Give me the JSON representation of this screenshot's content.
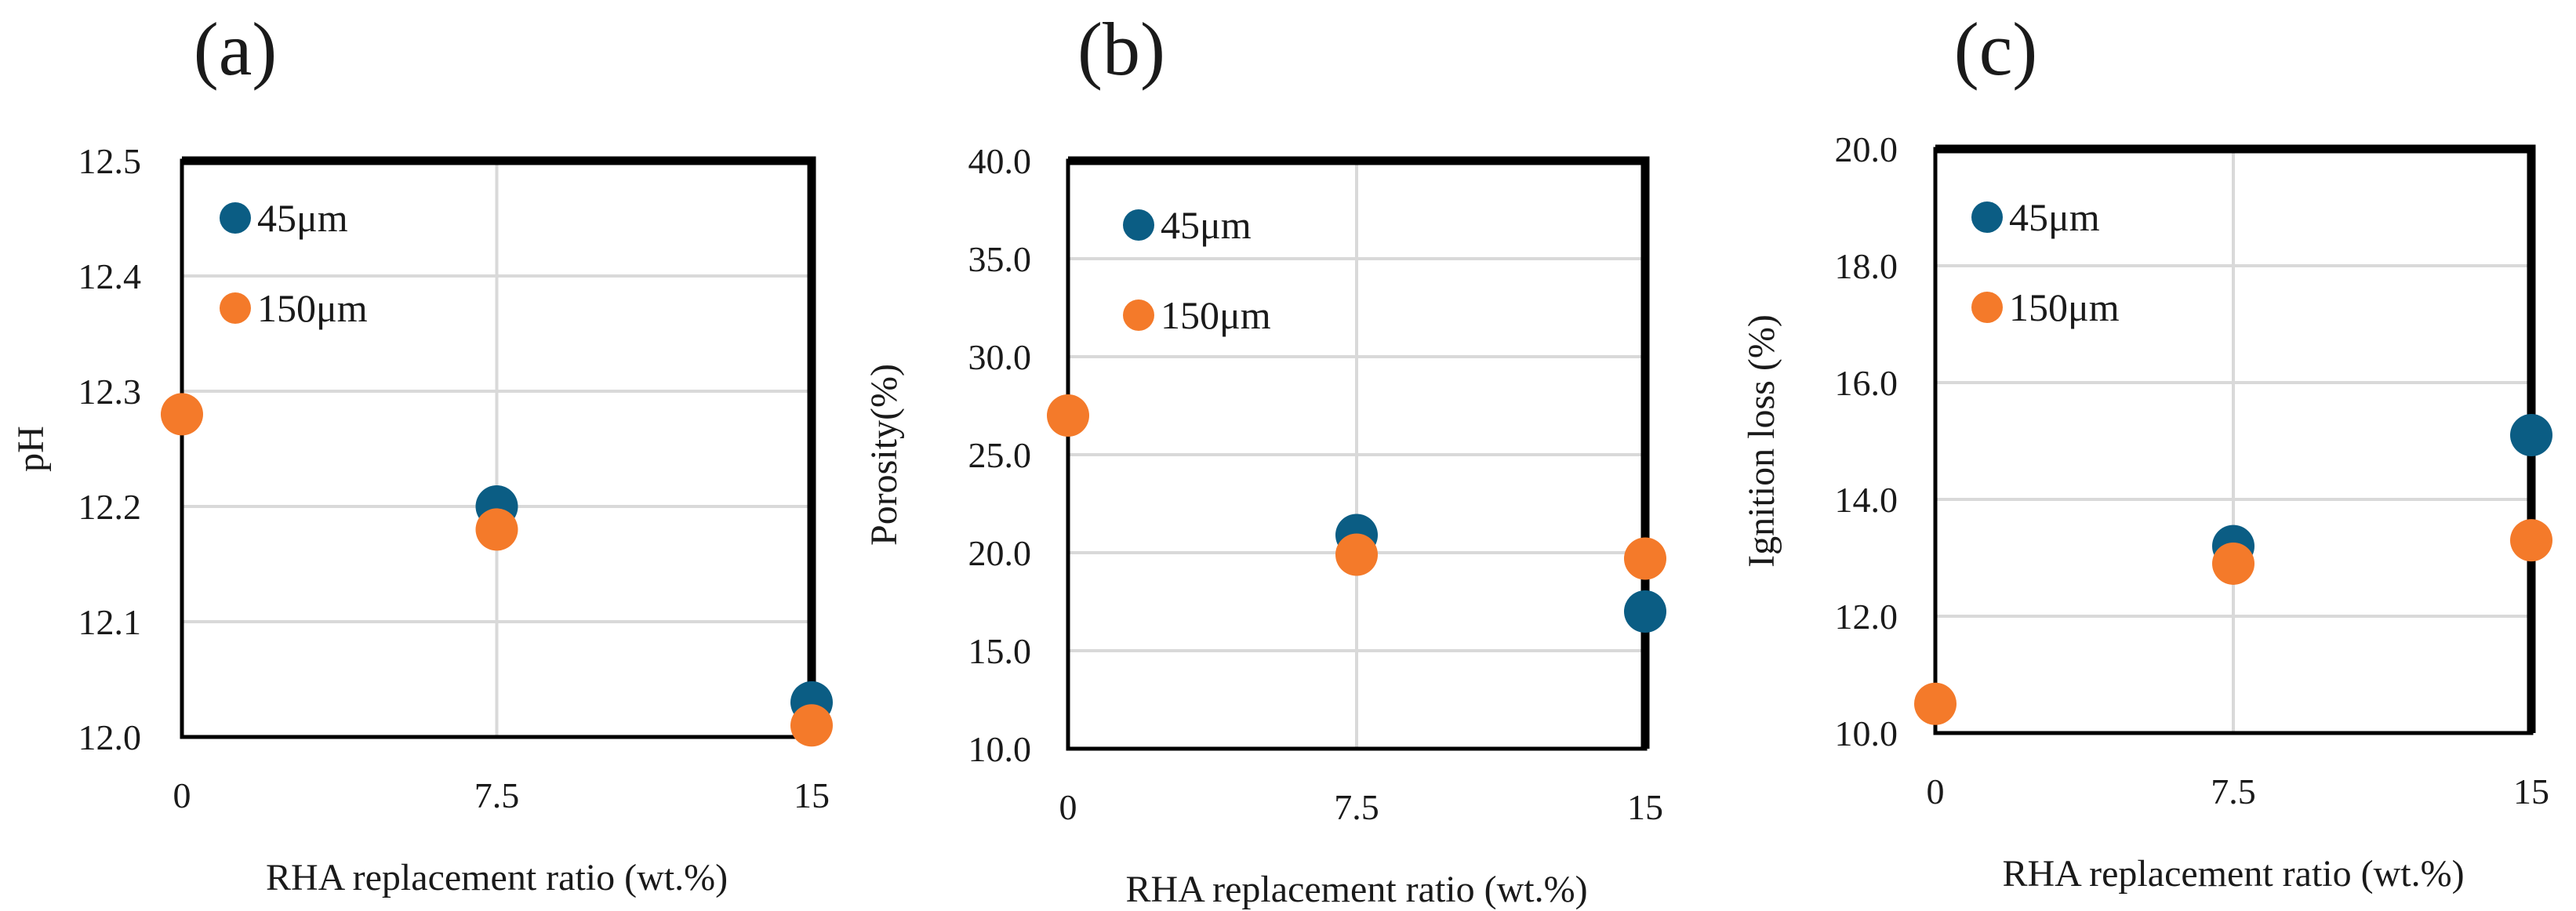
{
  "colors": {
    "series_45": "#0b5d84",
    "series_150": "#f47a2a",
    "grid": "#d9d9d9",
    "frame": "#000000",
    "text": "#1a1a1a"
  },
  "chart_data": [
    {
      "type": "scatter",
      "panel_label": "(a)",
      "title": "",
      "xlabel": "RHA replacement ratio (wt.%)",
      "ylabel": "pH",
      "x_ticks": [
        "0",
        "7.5",
        "15"
      ],
      "y_ticks": [
        "12.0",
        "12.1",
        "12.2",
        "12.3",
        "12.4",
        "12.5"
      ],
      "xlim": [
        0,
        15
      ],
      "ylim": [
        12.0,
        12.5
      ],
      "grid": true,
      "legend_position": "top-left",
      "series": [
        {
          "name": "45μm",
          "color_key": "series_45",
          "x": [
            7.5,
            15
          ],
          "y": [
            12.2,
            12.03
          ]
        },
        {
          "name": "150μm",
          "color_key": "series_150",
          "x": [
            0,
            7.5,
            15
          ],
          "y": [
            12.28,
            12.18,
            12.01
          ]
        }
      ]
    },
    {
      "type": "scatter",
      "panel_label": "(b)",
      "title": "",
      "xlabel": "RHA replacement ratio (wt.%)",
      "ylabel": "Porosity(%)",
      "x_ticks": [
        "0",
        "7.5",
        "15"
      ],
      "y_ticks": [
        "10.0",
        "15.0",
        "20.0",
        "25.0",
        "30.0",
        "35.0",
        "40.0"
      ],
      "xlim": [
        0,
        15
      ],
      "ylim": [
        10,
        40
      ],
      "grid": true,
      "legend_position": "top-left",
      "series": [
        {
          "name": "45μm",
          "color_key": "series_45",
          "x": [
            7.5,
            15
          ],
          "y": [
            20.9,
            17.0
          ]
        },
        {
          "name": "150μm",
          "color_key": "series_150",
          "x": [
            0,
            7.5,
            15
          ],
          "y": [
            27.0,
            19.9,
            19.7
          ]
        }
      ]
    },
    {
      "type": "scatter",
      "panel_label": "(c)",
      "title": "",
      "xlabel": "RHA replacement ratio (wt.%)",
      "ylabel": "Ignition loss (%)",
      "x_ticks": [
        "0",
        "7.5",
        "15"
      ],
      "y_ticks": [
        "10.0",
        "12.0",
        "14.0",
        "16.0",
        "18.0",
        "20.0"
      ],
      "xlim": [
        0,
        15
      ],
      "ylim": [
        10,
        20
      ],
      "grid": true,
      "legend_position": "top-left",
      "series": [
        {
          "name": "45μm",
          "color_key": "series_45",
          "x": [
            7.5,
            15
          ],
          "y": [
            13.2,
            15.1
          ]
        },
        {
          "name": "150μm",
          "color_key": "series_150",
          "x": [
            0,
            7.5,
            15
          ],
          "y": [
            10.5,
            12.9,
            13.3
          ]
        }
      ]
    }
  ]
}
